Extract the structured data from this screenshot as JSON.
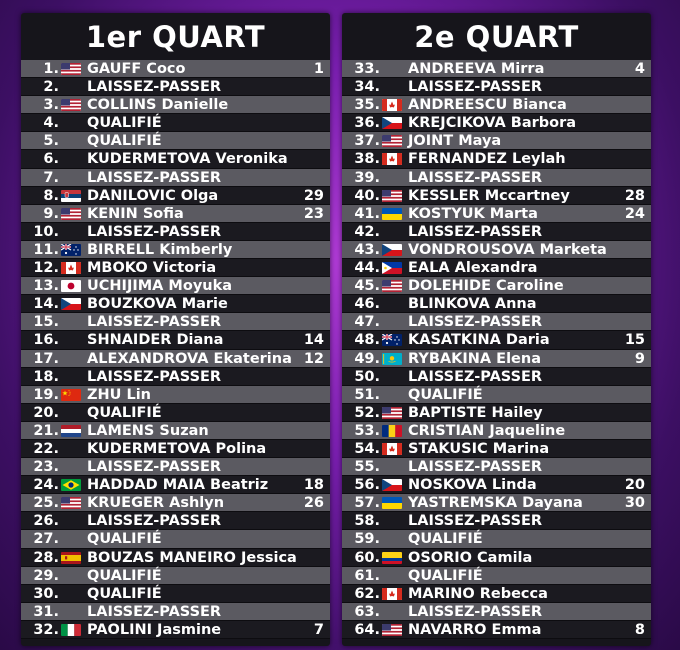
{
  "left": {
    "title": "1er QUART",
    "rows": [
      {
        "num": "1.",
        "flag": "usa",
        "name": "GAUFF Coco",
        "seed": "1"
      },
      {
        "num": "2.",
        "flag": "",
        "name": "LAISSEZ-PASSER",
        "seed": ""
      },
      {
        "num": "3.",
        "flag": "usa",
        "name": "COLLINS Danielle",
        "seed": ""
      },
      {
        "num": "4.",
        "flag": "",
        "name": "QUALIFIÉ",
        "seed": ""
      },
      {
        "num": "5.",
        "flag": "",
        "name": "QUALIFIÉ",
        "seed": ""
      },
      {
        "num": "6.",
        "flag": "",
        "name": "KUDERMETOVA Veronika",
        "seed": ""
      },
      {
        "num": "7.",
        "flag": "",
        "name": "LAISSEZ-PASSER",
        "seed": ""
      },
      {
        "num": "8.",
        "flag": "serbia",
        "name": "DANILOVIC Olga",
        "seed": "29"
      },
      {
        "num": "9.",
        "flag": "usa",
        "name": "KENIN Sofia",
        "seed": "23"
      },
      {
        "num": "10.",
        "flag": "",
        "name": "LAISSEZ-PASSER",
        "seed": ""
      },
      {
        "num": "11.",
        "flag": "australia",
        "name": "BIRRELL Kimberly",
        "seed": ""
      },
      {
        "num": "12.",
        "flag": "canada",
        "name": "MBOKO Victoria",
        "seed": ""
      },
      {
        "num": "13.",
        "flag": "japan",
        "name": "UCHIJIMA Moyuka",
        "seed": ""
      },
      {
        "num": "14.",
        "flag": "czech",
        "name": "BOUZKOVA Marie",
        "seed": ""
      },
      {
        "num": "15.",
        "flag": "",
        "name": "LAISSEZ-PASSER",
        "seed": ""
      },
      {
        "num": "16.",
        "flag": "",
        "name": "SHNAIDER Diana",
        "seed": "14"
      },
      {
        "num": "17.",
        "flag": "",
        "name": "ALEXANDROVA Ekaterina",
        "seed": "12"
      },
      {
        "num": "18.",
        "flag": "",
        "name": "LAISSEZ-PASSER",
        "seed": ""
      },
      {
        "num": "19.",
        "flag": "china",
        "name": "ZHU Lin",
        "seed": ""
      },
      {
        "num": "20.",
        "flag": "",
        "name": "QUALIFIÉ",
        "seed": ""
      },
      {
        "num": "21.",
        "flag": "netherlands",
        "name": "LAMENS Suzan",
        "seed": ""
      },
      {
        "num": "22.",
        "flag": "",
        "name": "KUDERMETOVA Polina",
        "seed": ""
      },
      {
        "num": "23.",
        "flag": "",
        "name": "LAISSEZ-PASSER",
        "seed": ""
      },
      {
        "num": "24.",
        "flag": "brazil",
        "name": "HADDAD MAIA Beatriz",
        "seed": "18"
      },
      {
        "num": "25.",
        "flag": "usa",
        "name": "KRUEGER Ashlyn",
        "seed": "26"
      },
      {
        "num": "26.",
        "flag": "",
        "name": "LAISSEZ-PASSER",
        "seed": ""
      },
      {
        "num": "27.",
        "flag": "",
        "name": "QUALIFIÉ",
        "seed": ""
      },
      {
        "num": "28.",
        "flag": "spain",
        "name": "BOUZAS MANEIRO Jessica",
        "seed": ""
      },
      {
        "num": "29.",
        "flag": "",
        "name": "QUALIFIÉ",
        "seed": ""
      },
      {
        "num": "30.",
        "flag": "",
        "name": "QUALIFIÉ",
        "seed": ""
      },
      {
        "num": "31.",
        "flag": "",
        "name": "LAISSEZ-PASSER",
        "seed": ""
      },
      {
        "num": "32.",
        "flag": "italy",
        "name": "PAOLINI Jasmine",
        "seed": "7"
      }
    ]
  },
  "right": {
    "title": "2e QUART",
    "rows": [
      {
        "num": "33.",
        "flag": "",
        "name": "ANDREEVA Mirra",
        "seed": "4"
      },
      {
        "num": "34.",
        "flag": "",
        "name": "LAISSEZ-PASSER",
        "seed": ""
      },
      {
        "num": "35.",
        "flag": "canada",
        "name": "ANDREESCU Bianca",
        "seed": ""
      },
      {
        "num": "36.",
        "flag": "czech",
        "name": "KREJCIKOVA Barbora",
        "seed": ""
      },
      {
        "num": "37.",
        "flag": "usa",
        "name": "JOINT Maya",
        "seed": ""
      },
      {
        "num": "38.",
        "flag": "canada",
        "name": "FERNANDEZ Leylah",
        "seed": ""
      },
      {
        "num": "39.",
        "flag": "",
        "name": "LAISSEZ-PASSER",
        "seed": ""
      },
      {
        "num": "40.",
        "flag": "usa",
        "name": "KESSLER Mccartney",
        "seed": "28"
      },
      {
        "num": "41.",
        "flag": "ukraine",
        "name": "KOSTYUK Marta",
        "seed": "24"
      },
      {
        "num": "42.",
        "flag": "",
        "name": "LAISSEZ-PASSER",
        "seed": ""
      },
      {
        "num": "43.",
        "flag": "czech",
        "name": "VONDROUSOVA Marketa",
        "seed": ""
      },
      {
        "num": "44.",
        "flag": "philippines",
        "name": "EALA Alexandra",
        "seed": ""
      },
      {
        "num": "45.",
        "flag": "usa",
        "name": "DOLEHIDE Caroline",
        "seed": ""
      },
      {
        "num": "46.",
        "flag": "",
        "name": "BLINKOVA Anna",
        "seed": ""
      },
      {
        "num": "47.",
        "flag": "",
        "name": "LAISSEZ-PASSER",
        "seed": ""
      },
      {
        "num": "48.",
        "flag": "australia",
        "name": "KASATKINA Daria",
        "seed": "15"
      },
      {
        "num": "49.",
        "flag": "kazakhstan",
        "name": "RYBAKINA Elena",
        "seed": "9"
      },
      {
        "num": "50.",
        "flag": "",
        "name": "LAISSEZ-PASSER",
        "seed": ""
      },
      {
        "num": "51.",
        "flag": "",
        "name": "QUALIFIÉ",
        "seed": ""
      },
      {
        "num": "52.",
        "flag": "usa",
        "name": "BAPTISTE Hailey",
        "seed": ""
      },
      {
        "num": "53.",
        "flag": "romania",
        "name": "CRISTIAN Jaqueline",
        "seed": ""
      },
      {
        "num": "54.",
        "flag": "canada",
        "name": "STAKUSIC Marina",
        "seed": ""
      },
      {
        "num": "55.",
        "flag": "",
        "name": "LAISSEZ-PASSER",
        "seed": ""
      },
      {
        "num": "56.",
        "flag": "czech",
        "name": "NOSKOVA Linda",
        "seed": "20"
      },
      {
        "num": "57.",
        "flag": "ukraine",
        "name": "YASTREMSKA Dayana",
        "seed": "30"
      },
      {
        "num": "58.",
        "flag": "",
        "name": "LAISSEZ-PASSER",
        "seed": ""
      },
      {
        "num": "59.",
        "flag": "",
        "name": "QUALIFIÉ",
        "seed": ""
      },
      {
        "num": "60.",
        "flag": "colombia",
        "name": "OSORIO Camila",
        "seed": ""
      },
      {
        "num": "61.",
        "flag": "",
        "name": "QUALIFIÉ",
        "seed": ""
      },
      {
        "num": "62.",
        "flag": "canada",
        "name": "MARINO Rebecca",
        "seed": ""
      },
      {
        "num": "63.",
        "flag": "",
        "name": "LAISSEZ-PASSER",
        "seed": ""
      },
      {
        "num": "64.",
        "flag": "usa",
        "name": "NAVARRO Emma",
        "seed": "8"
      }
    ]
  },
  "colors": {
    "row_light": "#5b5a61",
    "row_dark": "#1b1a20",
    "panel": "#16151b",
    "background": "#7a1fb0"
  }
}
